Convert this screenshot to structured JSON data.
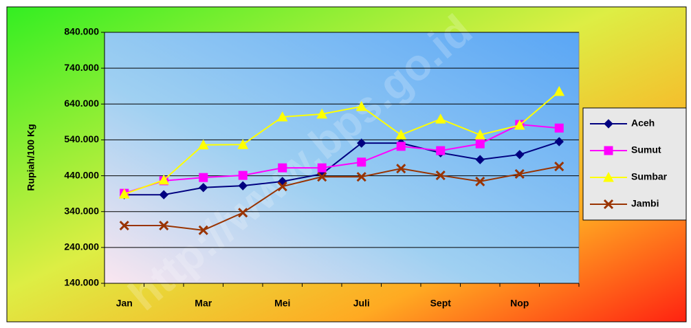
{
  "chart_data": {
    "type": "line",
    "y_label": "Rupiah/100 Kg",
    "watermark": "http://www.bps.go.id",
    "categories": [
      "Jan",
      null,
      "Mar",
      null,
      "Mei",
      null,
      "Juli",
      null,
      "Sept",
      null,
      "Nop",
      null
    ],
    "ylim": [
      140000,
      840000
    ],
    "yticks": [
      {
        "value": 140000,
        "label": "140.000"
      },
      {
        "value": 240000,
        "label": "240.000"
      },
      {
        "value": 340000,
        "label": "340.000"
      },
      {
        "value": 440000,
        "label": "440.000"
      },
      {
        "value": 540000,
        "label": "540.000"
      },
      {
        "value": 640000,
        "label": "640.000"
      },
      {
        "value": 740000,
        "label": "740.000"
      },
      {
        "value": 840000,
        "label": "840.000"
      }
    ],
    "grid": true,
    "legend": "right",
    "series": [
      {
        "name": "Aceh",
        "color": "#000080",
        "marker": "diamond",
        "values": [
          387000,
          387000,
          407000,
          412000,
          424000,
          445000,
          531000,
          531000,
          504000,
          485000,
          499000,
          535000
        ]
      },
      {
        "name": "Sumut",
        "color": "#ff00ff",
        "marker": "square",
        "values": [
          391000,
          426000,
          435000,
          441000,
          462000,
          462000,
          478000,
          522000,
          510000,
          529000,
          583000,
          573000
        ]
      },
      {
        "name": "Sumbar",
        "color": "#ffff00",
        "marker": "triangle",
        "values": [
          389000,
          428000,
          526000,
          527000,
          604000,
          612000,
          633000,
          554000,
          598000,
          554000,
          581000,
          675000
        ]
      },
      {
        "name": "Jambi",
        "color": "#993300",
        "marker": "x",
        "values": [
          301000,
          301000,
          288000,
          337000,
          410000,
          437000,
          437000,
          460000,
          441000,
          424000,
          445000,
          466000
        ]
      }
    ]
  }
}
